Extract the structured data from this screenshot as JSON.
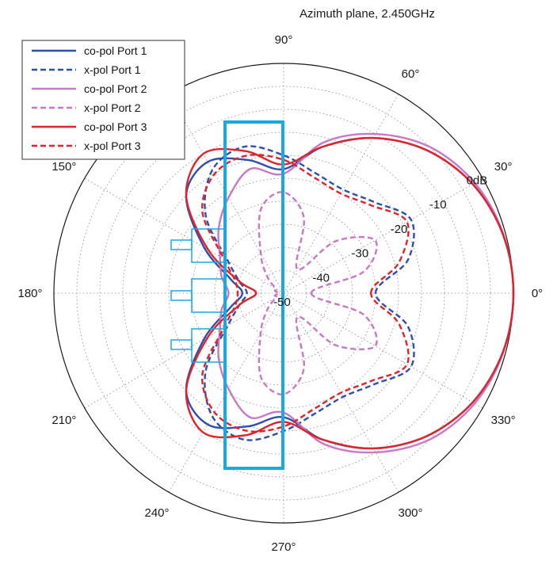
{
  "chart_data": {
    "type": "polar-line",
    "title": "Azimuth plane, 2.450GHz",
    "angle_ticks": [
      {
        "deg": 0,
        "label": "0°"
      },
      {
        "deg": 30,
        "label": "30°"
      },
      {
        "deg": 60,
        "label": "60°"
      },
      {
        "deg": 90,
        "label": "90°"
      },
      {
        "deg": 150,
        "label": "150°"
      },
      {
        "deg": 180,
        "label": "180°"
      },
      {
        "deg": 210,
        "label": "210°"
      },
      {
        "deg": 240,
        "label": "240°"
      },
      {
        "deg": 270,
        "label": "270°"
      },
      {
        "deg": 300,
        "label": "300°"
      },
      {
        "deg": 330,
        "label": "330°"
      }
    ],
    "radial_ticks": [
      {
        "db": 0,
        "label": "0dB"
      },
      {
        "db": -10,
        "label": "-10"
      },
      {
        "db": -20,
        "label": "-20"
      },
      {
        "db": -30,
        "label": "-30"
      },
      {
        "db": -40,
        "label": "-40"
      },
      {
        "db": -50,
        "label": "-50"
      }
    ],
    "r_range_db": [
      -50,
      0
    ],
    "grid": true,
    "legend_position": "top-left",
    "angles_deg": [
      0,
      15,
      30,
      45,
      60,
      75,
      90,
      105,
      120,
      135,
      150,
      165,
      180,
      195,
      210,
      225,
      240,
      255,
      270,
      285,
      300,
      315,
      330,
      345,
      360
    ],
    "series": [
      {
        "name": "co-pol Port 1",
        "color": "#2e4fb0",
        "dash": "solid",
        "values_db": [
          0,
          -0.6,
          -2.5,
          -6,
          -11,
          -17,
          -23,
          -20,
          -17,
          -20,
          -30,
          -38,
          -41,
          -38,
          -30,
          -20,
          -17,
          -20,
          -23,
          -17,
          -11,
          -6,
          -2.5,
          -0.6,
          0
        ]
      },
      {
        "name": "x-pol Port 1",
        "color": "#2e4fb0",
        "dash": "dashed",
        "values_db": [
          -30,
          -22,
          -18,
          -22,
          -24,
          -23,
          -20,
          -17,
          -19,
          -26,
          -36,
          -40,
          -42,
          -40,
          -36,
          -26,
          -19,
          -17,
          -20,
          -23,
          -24,
          -22,
          -18,
          -22,
          -30
        ]
      },
      {
        "name": "co-pol Port 2",
        "color": "#c878c4",
        "dash": "solid",
        "values_db": [
          0,
          -0.5,
          -2,
          -5,
          -10,
          -16,
          -24,
          -22,
          -26,
          -30,
          -34,
          -36,
          -38,
          -36,
          -34,
          -30,
          -26,
          -22,
          -24,
          -16,
          -10,
          -5,
          -2,
          -0.5,
          0
        ]
      },
      {
        "name": "x-pol Port 2",
        "color": "#c878c4",
        "dash": "dashed",
        "values_db": [
          -44,
          -32,
          -27,
          -34,
          -44,
          -33,
          -28,
          -31,
          -40,
          -45,
          -48,
          -48,
          -49,
          -48,
          -48,
          -45,
          -40,
          -31,
          -28,
          -33,
          -44,
          -34,
          -27,
          -32,
          -44
        ]
      },
      {
        "name": "co-pol Port 3",
        "color": "#e0232b",
        "dash": "solid",
        "values_db": [
          0,
          -0.6,
          -2.5,
          -6,
          -11,
          -17,
          -22,
          -18,
          -15,
          -20,
          -31,
          -40,
          -44,
          -40,
          -31,
          -20,
          -15,
          -18,
          -22,
          -17,
          -11,
          -6,
          -2.5,
          -0.6,
          0
        ]
      },
      {
        "name": "x-pol Port 3",
        "color": "#e0232b",
        "dash": "dashed",
        "values_db": [
          -31,
          -24,
          -19,
          -23,
          -25,
          -24,
          -21,
          -19,
          -20,
          -25,
          -35,
          -39,
          -40,
          -39,
          -35,
          -25,
          -20,
          -19,
          -21,
          -24,
          -25,
          -23,
          -19,
          -24,
          -31
        ]
      }
    ]
  },
  "colors": {
    "grid": "#8a8a8a",
    "outer_ring": "#1a1a1a",
    "overlay_outline": "#1aa8e0"
  }
}
